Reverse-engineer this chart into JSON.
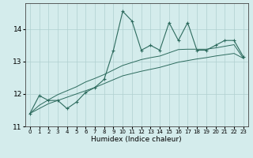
{
  "x": [
    0,
    1,
    2,
    3,
    4,
    5,
    6,
    7,
    8,
    9,
    10,
    11,
    12,
    13,
    14,
    15,
    16,
    17,
    18,
    19,
    20,
    21,
    22,
    23
  ],
  "y_main": [
    11.4,
    11.95,
    11.8,
    11.8,
    11.55,
    11.75,
    12.05,
    12.2,
    12.45,
    13.35,
    14.55,
    14.25,
    13.35,
    13.5,
    13.35,
    14.2,
    13.65,
    14.2,
    13.35,
    13.35,
    13.5,
    13.65,
    13.65,
    13.15
  ],
  "y_lower": [
    11.4,
    11.55,
    11.7,
    11.8,
    11.9,
    12.0,
    12.1,
    12.2,
    12.32,
    12.44,
    12.56,
    12.63,
    12.7,
    12.76,
    12.82,
    12.9,
    12.98,
    13.03,
    13.08,
    13.12,
    13.17,
    13.21,
    13.25,
    13.1
  ],
  "y_upper": [
    11.4,
    11.65,
    11.82,
    11.98,
    12.1,
    12.22,
    12.37,
    12.48,
    12.6,
    12.74,
    12.88,
    12.97,
    13.06,
    13.12,
    13.17,
    13.27,
    13.37,
    13.38,
    13.38,
    13.38,
    13.42,
    13.47,
    13.52,
    13.1
  ],
  "line_color": "#2d6b5e",
  "bg_color": "#d4ecec",
  "grid_color": "#b0d0d0",
  "xlabel": "Humidex (Indice chaleur)",
  "xlim": [
    -0.5,
    23.5
  ],
  "ylim": [
    11.0,
    14.8
  ],
  "yticks": [
    11,
    12,
    13,
    14
  ],
  "xtick_labels": [
    "0",
    "1",
    "2",
    "3",
    "4",
    "5",
    "6",
    "7",
    "8",
    "9",
    "10",
    "11",
    "12",
    "13",
    "14",
    "15",
    "16",
    "17",
    "18",
    "19",
    "20",
    "21",
    "22",
    "23"
  ]
}
